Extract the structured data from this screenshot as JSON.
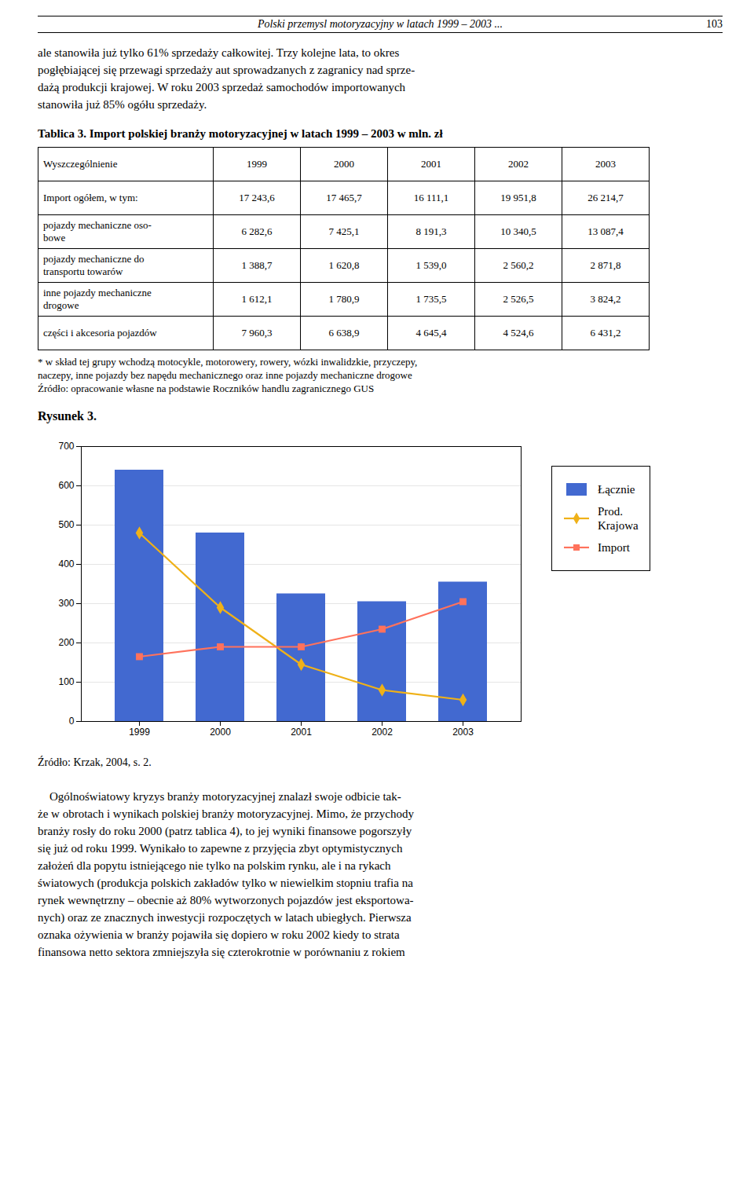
{
  "chart_data": {
    "type": "bar",
    "title": "Rysunek 3.",
    "caption": "Źródło: Krzak, 2004, s. 2.",
    "categories": [
      "1999",
      "2000",
      "2001",
      "2002",
      "2003"
    ],
    "series": [
      {
        "name": "Łącznie",
        "type": "bar",
        "values": [
          640,
          480,
          325,
          305,
          355
        ]
      },
      {
        "name": "Prod.\nKrajowa",
        "type": "line",
        "marker": "diamond",
        "values": [
          480,
          290,
          145,
          80,
          55
        ]
      },
      {
        "name": "Import",
        "type": "line",
        "marker": "square",
        "values": [
          165,
          190,
          190,
          235,
          305
        ]
      }
    ],
    "ylim": [
      0,
      700
    ],
    "yticks": [
      0,
      100,
      200,
      300,
      400,
      500,
      600,
      700
    ],
    "grid": true,
    "legend": "right"
  },
  "page": {
    "header": "Polski przemysl motoryzacyjny w latach 1999 – 2003 ...",
    "page_number": "103",
    "paragraphs_before": [
      "ale stanowiła już tylko 61% sprzedaży całkowitej. Trzy kolejne lata, to okres",
      "pogłębiającej się przewagi sprzedaży aut sprowadzanych z zagranicy nad sprze-",
      "dażą produkcji krajowej. W roku 2003 sprzedaż samochodów importowanych",
      "stanowiła już 85% ogółu sprzedaży."
    ],
    "table": {
      "title": "Tablica 3. Import polskiej branży motoryzacyjnej w latach 1999 – 2003 w mln. zł",
      "columns": [
        "Wyszczególnienie",
        "1999",
        "2000",
        "2001",
        "2002",
        "2003"
      ],
      "rows": [
        [
          "Import ogółem, w tym:",
          "17 243,6",
          "17 465,7",
          "16 111,1",
          "19 951,8",
          "26 214,7"
        ],
        [
          "pojazdy mechaniczne oso-\nbowe",
          "6 282,6",
          "7 425,1",
          "8 191,3",
          "10 340,5",
          "13 087,4"
        ],
        [
          "pojazdy mechaniczne do\ntransportu towarów",
          "1 388,7",
          "1 620,8",
          "1 539,0",
          "2 560,2",
          "2 871,8"
        ],
        [
          "inne pojazdy mechaniczne\ndrogowe",
          "1 612,1",
          "1 780,9",
          "1 735,5",
          "2 526,5",
          "3 824,2"
        ],
        [
          "części i akcesoria pojazdów",
          "7 960,3",
          "6 638,9",
          "4 645,4",
          "4 524,6",
          "6 431,2"
        ]
      ]
    },
    "notes": [
      "* w skład tej grupy wchodzą motocykle, motorowery, rowery, wózki inwalidzkie, przyczepy,",
      "naczepy, inne pojazdy bez napędu mechanicznego oraz inne pojazdy mechaniczne drogowe",
      "Źródło: opracowanie własne na podstawie Roczników handlu zagranicznego GUS"
    ],
    "paragraphs_after": [
      "    Ogólnoświatowy kryzys branży motoryzacyjnej znalazł swoje odbicie tak-",
      "że w obrotach i wynikach polskiej branży motoryzacyjnej. Mimo, że przychody",
      "branży rosły do roku 2000 (patrz tablica 4), to jej wyniki finansowe pogorszyły",
      "się już od roku 1999. Wynikało to zapewne z przyjęcia zbyt optymistycznych",
      "założeń dla popytu istniejącego nie tylko na polskim rynku, ale i na rykach",
      "światowych (produkcja polskich zakładów tylko w niewielkim stopniu trafia na",
      "rynek wewnętrzny – obecnie aż 80% wytworzonych pojazdów jest eksportowa-",
      "nych) oraz ze znacznych inwestycji rozpoczętych w latach ubiegłych. Pierwsza",
      "oznaka ożywienia w branży pojawiła się dopiero w roku 2002 kiedy to strata",
      "finansowa netto sektora zmniejszyła się czterokrotnie w porównaniu z rokiem"
    ]
  }
}
